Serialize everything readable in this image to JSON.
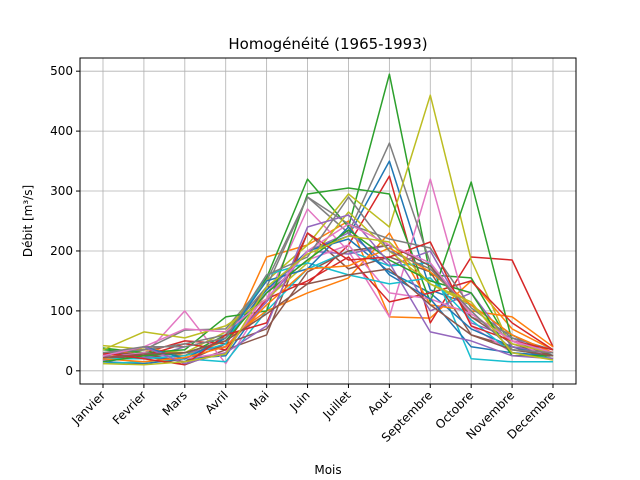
{
  "chart_data": {
    "type": "line",
    "title": "Homogénéité (1965-1993)",
    "xlabel": "Mois",
    "ylabel": "Débit [m³/s]",
    "categories": [
      "Janvier",
      "Fevrier",
      "Mars",
      "Avril",
      "Mai",
      "Juin",
      "Juillet",
      "Aout",
      "Septembre",
      "Octobre",
      "Novembre",
      "Decembre"
    ],
    "ylim": [
      -22,
      522
    ],
    "yticks": [
      0,
      100,
      200,
      300,
      400,
      500
    ],
    "grid": true,
    "colors": [
      "#1f77b4",
      "#ff7f0e",
      "#2ca02c",
      "#d62728",
      "#9467bd",
      "#8c564b",
      "#e377c2",
      "#7f7f7f",
      "#bcbd22",
      "#17becf"
    ],
    "series": [
      {
        "values": [
          15,
          12,
          20,
          25,
          120,
          200,
          225,
          350,
          135,
          110,
          60,
          25
        ]
      },
      {
        "values": [
          20,
          35,
          30,
          40,
          190,
          210,
          250,
          90,
          88,
          150,
          70,
          35
        ]
      },
      {
        "values": [
          35,
          30,
          25,
          60,
          155,
          320,
          240,
          495,
          160,
          155,
          40,
          30
        ]
      },
      {
        "values": [
          18,
          30,
          50,
          45,
          140,
          145,
          210,
          325,
          80,
          190,
          185,
          40
        ]
      },
      {
        "values": [
          25,
          20,
          40,
          55,
          130,
          200,
          230,
          175,
          200,
          80,
          55,
          25
        ]
      },
      {
        "values": [
          20,
          25,
          10,
          35,
          60,
          230,
          170,
          190,
          165,
          60,
          40,
          20
        ]
      },
      {
        "values": [
          15,
          25,
          100,
          12,
          120,
          270,
          200,
          90,
          320,
          75,
          30,
          20
        ]
      },
      {
        "values": [
          25,
          35,
          68,
          70,
          150,
          290,
          230,
          380,
          180,
          90,
          60,
          30
        ]
      },
      {
        "values": [
          42,
          36,
          30,
          65,
          150,
          210,
          295,
          240,
          460,
          185,
          35,
          25
        ]
      },
      {
        "values": [
          12,
          15,
          20,
          15,
          100,
          170,
          200,
          175,
          180,
          20,
          15,
          15
        ]
      },
      {
        "values": [
          30,
          25,
          15,
          55,
          135,
          200,
          220,
          165,
          130,
          70,
          40,
          25
        ]
      },
      {
        "values": [
          20,
          40,
          25,
          50,
          100,
          130,
          155,
          230,
          110,
          100,
          90,
          40
        ]
      },
      {
        "values": [
          38,
          30,
          35,
          90,
          100,
          295,
          305,
          295,
          115,
          315,
          50,
          25
        ]
      },
      {
        "values": [
          28,
          25,
          45,
          35,
          120,
          150,
          190,
          115,
          130,
          150,
          80,
          35
        ]
      },
      {
        "values": [
          18,
          22,
          30,
          40,
          115,
          200,
          195,
          210,
          100,
          130,
          40,
          30
        ]
      },
      {
        "values": [
          30,
          28,
          15,
          45,
          70,
          165,
          200,
          210,
          175,
          90,
          45,
          25
        ]
      },
      {
        "values": [
          22,
          30,
          20,
          30,
          130,
          185,
          210,
          130,
          120,
          95,
          50,
          20
        ]
      },
      {
        "values": [
          30,
          35,
          45,
          60,
          140,
          290,
          245,
          220,
          205,
          105,
          55,
          35
        ]
      },
      {
        "values": [
          35,
          65,
          55,
          75,
          120,
          180,
          265,
          200,
          145,
          110,
          45,
          30
        ]
      },
      {
        "values": [
          20,
          20,
          25,
          45,
          160,
          180,
          160,
          145,
          155,
          85,
          30,
          20
        ]
      },
      {
        "values": [
          25,
          40,
          20,
          55,
          150,
          170,
          240,
          160,
          120,
          40,
          30,
          25
        ]
      },
      {
        "values": [
          20,
          15,
          22,
          40,
          110,
          170,
          175,
          205,
          165,
          110,
          60,
          30
        ]
      },
      {
        "values": [
          15,
          25,
          30,
          50,
          130,
          185,
          235,
          185,
          150,
          130,
          25,
          25
        ]
      },
      {
        "values": [
          30,
          20,
          10,
          60,
          80,
          230,
          185,
          190,
          215,
          75,
          50,
          35
        ]
      },
      {
        "values": [
          25,
          40,
          12,
          30,
          75,
          240,
          260,
          180,
          65,
          50,
          25,
          20
        ]
      },
      {
        "values": [
          22,
          28,
          30,
          50,
          95,
          145,
          160,
          170,
          110,
          60,
          35,
          25
        ]
      },
      {
        "values": [
          25,
          40,
          70,
          65,
          120,
          200,
          245,
          210,
          180,
          95,
          50,
          30
        ]
      },
      {
        "values": [
          30,
          40,
          40,
          55,
          160,
          190,
          290,
          200,
          170,
          100,
          35,
          30
        ]
      },
      {
        "values": [
          12,
          10,
          15,
          28,
          140,
          195,
          225,
          215,
          145,
          115,
          30,
          18
        ]
      }
    ]
  }
}
